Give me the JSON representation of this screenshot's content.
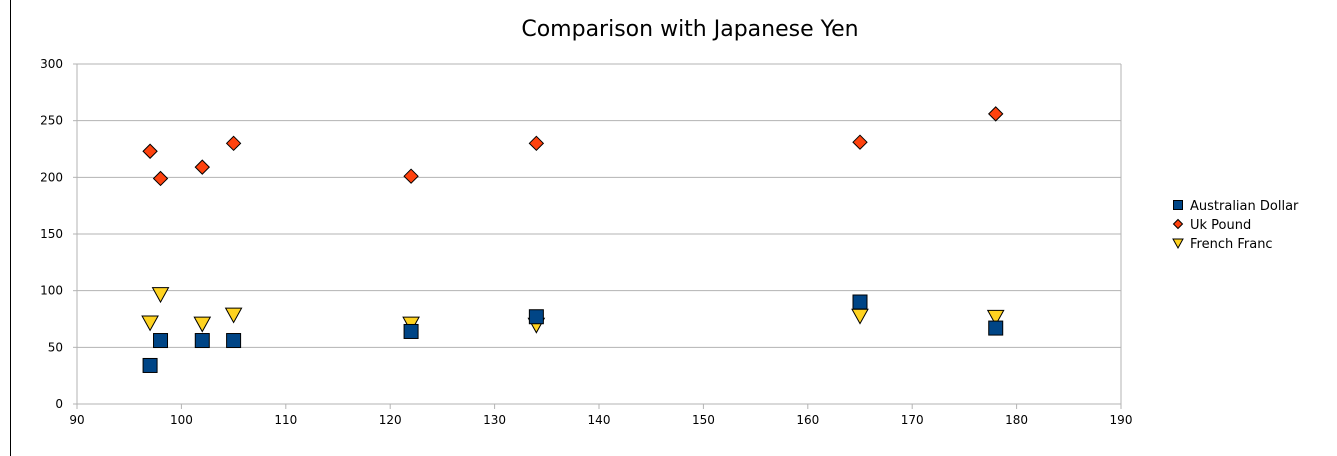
{
  "chart_data": {
    "type": "scatter",
    "title": "Comparison with Japanese Yen",
    "xlabel": "",
    "ylabel": "",
    "xlim": [
      90,
      190
    ],
    "ylim": [
      0,
      300
    ],
    "x_ticks": [
      90,
      100,
      110,
      120,
      130,
      140,
      150,
      160,
      170,
      180,
      190
    ],
    "y_ticks": [
      0,
      50,
      100,
      150,
      200,
      250,
      300
    ],
    "grid": "horizontal",
    "legend_position": "right",
    "series": [
      {
        "name": "Australian Dollar",
        "marker": "square",
        "color": "#004586",
        "points": [
          {
            "x": 97,
            "y": 34
          },
          {
            "x": 98,
            "y": 56
          },
          {
            "x": 102,
            "y": 56
          },
          {
            "x": 105,
            "y": 56
          },
          {
            "x": 122,
            "y": 64
          },
          {
            "x": 134,
            "y": 77
          },
          {
            "x": 165,
            "y": 90
          },
          {
            "x": 178,
            "y": 67
          }
        ]
      },
      {
        "name": "Uk Pound",
        "marker": "diamond",
        "color": "#ff420e",
        "points": [
          {
            "x": 97,
            "y": 223
          },
          {
            "x": 98,
            "y": 199
          },
          {
            "x": 102,
            "y": 209
          },
          {
            "x": 105,
            "y": 230
          },
          {
            "x": 122,
            "y": 201
          },
          {
            "x": 134,
            "y": 230
          },
          {
            "x": 165,
            "y": 231
          },
          {
            "x": 178,
            "y": 256
          }
        ]
      },
      {
        "name": "French Franc",
        "marker": "triangle-down",
        "color": "#ffd320",
        "points": [
          {
            "x": 97,
            "y": 72
          },
          {
            "x": 98,
            "y": 97
          },
          {
            "x": 102,
            "y": 71
          },
          {
            "x": 105,
            "y": 79
          },
          {
            "x": 122,
            "y": 71
          },
          {
            "x": 134,
            "y": 70
          },
          {
            "x": 165,
            "y": 78
          },
          {
            "x": 178,
            "y": 77
          }
        ]
      }
    ]
  },
  "colors": {
    "gridline": "#b3b3b3",
    "axis": "#b3b3b3",
    "marker_outline": "#000000"
  }
}
